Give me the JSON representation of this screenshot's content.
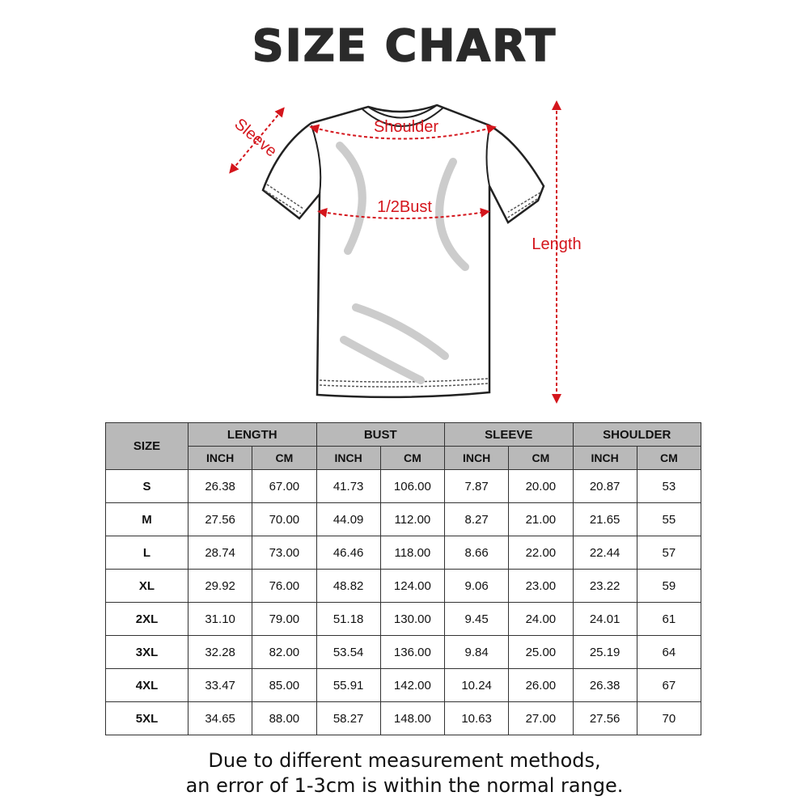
{
  "title": "SIZE CHART",
  "diagram_labels": {
    "sleeve": "Sleeve",
    "shoulder": "Shoulder",
    "bust": "1/2Bust",
    "length": "Length"
  },
  "colors": {
    "accent": "#d4151c",
    "header_bg": "#b9b9b9",
    "title": "#2a2a2a"
  },
  "table": {
    "size_header": "SIZE",
    "groups": [
      "LENGTH",
      "BUST",
      "SLEEVE",
      "SHOULDER"
    ],
    "units": [
      "INCH",
      "CM",
      "INCH",
      "CM",
      "INCH",
      "CM",
      "INCH",
      "CM"
    ],
    "rows": [
      {
        "size": "S",
        "values": [
          "26.38",
          "67.00",
          "41.73",
          "106.00",
          "7.87",
          "20.00",
          "20.87",
          "53"
        ]
      },
      {
        "size": "M",
        "values": [
          "27.56",
          "70.00",
          "44.09",
          "112.00",
          "8.27",
          "21.00",
          "21.65",
          "55"
        ]
      },
      {
        "size": "L",
        "values": [
          "28.74",
          "73.00",
          "46.46",
          "118.00",
          "8.66",
          "22.00",
          "22.44",
          "57"
        ]
      },
      {
        "size": "XL",
        "values": [
          "29.92",
          "76.00",
          "48.82",
          "124.00",
          "9.06",
          "23.00",
          "23.22",
          "59"
        ]
      },
      {
        "size": "2XL",
        "values": [
          "31.10",
          "79.00",
          "51.18",
          "130.00",
          "9.45",
          "24.00",
          "24.01",
          "61"
        ]
      },
      {
        "size": "3XL",
        "values": [
          "32.28",
          "82.00",
          "53.54",
          "136.00",
          "9.84",
          "25.00",
          "25.19",
          "64"
        ]
      },
      {
        "size": "4XL",
        "values": [
          "33.47",
          "85.00",
          "55.91",
          "142.00",
          "10.24",
          "26.00",
          "26.38",
          "67"
        ]
      },
      {
        "size": "5XL",
        "values": [
          "34.65",
          "88.00",
          "58.27",
          "148.00",
          "10.63",
          "27.00",
          "27.56",
          "70"
        ]
      }
    ]
  },
  "note": {
    "line1": "Due to different measurement methods,",
    "line2": "an error of 1-3cm is within the normal range."
  }
}
